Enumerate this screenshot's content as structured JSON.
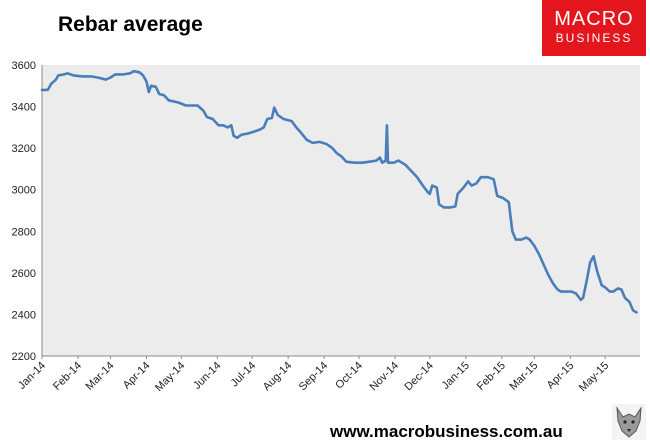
{
  "header": {
    "title": "Rebar average"
  },
  "logo": {
    "line1": "MACRO",
    "line2": "BUSINESS"
  },
  "footer": {
    "url": "www.macrobusiness.com.au"
  },
  "icons": {
    "watermark": "wolf-icon"
  },
  "colors": {
    "line": "#4a7ebb",
    "plot_background": "#ececec",
    "logo_background": "#e3161d"
  },
  "chart_data": {
    "type": "line",
    "title": "",
    "xlabel": "",
    "ylabel": "",
    "ylim": [
      2200,
      3600
    ],
    "yticks": [
      2200,
      2400,
      2600,
      2800,
      3000,
      3200,
      3400,
      3600
    ],
    "grid": false,
    "legend": "none",
    "x_tick_labels": [
      "Jan-14",
      "Feb-14",
      "Mar-14",
      "Apr-14",
      "May-14",
      "Jun-14",
      "Jul-14",
      "Aug-14",
      "Sep-14",
      "Oct-14",
      "Nov-14",
      "Dec-14",
      "Jan-15",
      "Feb-15",
      "Mar-15",
      "Apr-15",
      "May-15"
    ],
    "x_tick_dates": [
      "2014-01-01",
      "2014-02-01",
      "2014-03-01",
      "2014-04-01",
      "2014-05-01",
      "2014-06-01",
      "2014-07-01",
      "2014-08-01",
      "2014-09-01",
      "2014-10-01",
      "2014-11-01",
      "2014-12-01",
      "2015-01-01",
      "2015-02-01",
      "2015-03-01",
      "2015-04-01",
      "2015-05-01"
    ],
    "x_range": [
      "2014-01-01",
      "2015-05-31"
    ],
    "series": [
      {
        "points": [
          [
            "2014-01-01",
            3480
          ],
          [
            "2014-01-06",
            3480
          ],
          [
            "2014-01-09",
            3510
          ],
          [
            "2014-01-13",
            3530
          ],
          [
            "2014-01-15",
            3550
          ],
          [
            "2014-01-20",
            3555
          ],
          [
            "2014-01-23",
            3560
          ],
          [
            "2014-01-28",
            3550
          ],
          [
            "2014-02-05",
            3545
          ],
          [
            "2014-02-12",
            3545
          ],
          [
            "2014-02-18",
            3540
          ],
          [
            "2014-02-25",
            3530
          ],
          [
            "2014-03-01",
            3540
          ],
          [
            "2014-03-05",
            3555
          ],
          [
            "2014-03-12",
            3555
          ],
          [
            "2014-03-18",
            3560
          ],
          [
            "2014-03-21",
            3570
          ],
          [
            "2014-03-26",
            3565
          ],
          [
            "2014-03-29",
            3550
          ],
          [
            "2014-04-01",
            3520
          ],
          [
            "2014-04-03",
            3470
          ],
          [
            "2014-04-05",
            3500
          ],
          [
            "2014-04-09",
            3495
          ],
          [
            "2014-04-12",
            3460
          ],
          [
            "2014-04-16",
            3455
          ],
          [
            "2014-04-20",
            3430
          ],
          [
            "2014-04-28",
            3420
          ],
          [
            "2014-05-05",
            3405
          ],
          [
            "2014-05-09",
            3405
          ],
          [
            "2014-05-15",
            3405
          ],
          [
            "2014-05-20",
            3380
          ],
          [
            "2014-05-23",
            3350
          ],
          [
            "2014-05-28",
            3340
          ],
          [
            "2014-06-02",
            3310
          ],
          [
            "2014-06-06",
            3310
          ],
          [
            "2014-06-10",
            3300
          ],
          [
            "2014-06-13",
            3310
          ],
          [
            "2014-06-15",
            3260
          ],
          [
            "2014-06-18",
            3250
          ],
          [
            "2014-06-22",
            3265
          ],
          [
            "2014-06-27",
            3270
          ],
          [
            "2014-07-03",
            3280
          ],
          [
            "2014-07-08",
            3290
          ],
          [
            "2014-07-11",
            3300
          ],
          [
            "2014-07-14",
            3340
          ],
          [
            "2014-07-18",
            3345
          ],
          [
            "2014-07-20",
            3395
          ],
          [
            "2014-07-23",
            3360
          ],
          [
            "2014-07-28",
            3340
          ],
          [
            "2014-08-04",
            3330
          ],
          [
            "2014-08-08",
            3300
          ],
          [
            "2014-08-12",
            3275
          ],
          [
            "2014-08-17",
            3240
          ],
          [
            "2014-08-22",
            3225
          ],
          [
            "2014-08-28",
            3230
          ],
          [
            "2014-09-03",
            3220
          ],
          [
            "2014-09-08",
            3200
          ],
          [
            "2014-09-12",
            3175
          ],
          [
            "2014-09-16",
            3160
          ],
          [
            "2014-09-20",
            3135
          ],
          [
            "2014-09-27",
            3130
          ],
          [
            "2014-10-04",
            3130
          ],
          [
            "2014-10-10",
            3135
          ],
          [
            "2014-10-16",
            3140
          ],
          [
            "2014-10-19",
            3155
          ],
          [
            "2014-10-21",
            3130
          ],
          [
            "2014-10-24",
            3140
          ],
          [
            "2014-10-25",
            3310
          ],
          [
            "2014-10-26",
            3130
          ],
          [
            "2014-10-31",
            3130
          ],
          [
            "2014-11-04",
            3140
          ],
          [
            "2014-11-10",
            3120
          ],
          [
            "2014-11-15",
            3090
          ],
          [
            "2014-11-20",
            3060
          ],
          [
            "2014-11-25",
            3020
          ],
          [
            "2014-11-29",
            2990
          ],
          [
            "2014-12-01",
            2980
          ],
          [
            "2014-12-03",
            3020
          ],
          [
            "2014-12-07",
            3010
          ],
          [
            "2014-12-09",
            2930
          ],
          [
            "2014-12-13",
            2915
          ],
          [
            "2014-12-19",
            2915
          ],
          [
            "2014-12-23",
            2920
          ],
          [
            "2014-12-25",
            2980
          ],
          [
            "2014-12-30",
            3010
          ],
          [
            "2015-01-03",
            3040
          ],
          [
            "2015-01-06",
            3020
          ],
          [
            "2015-01-10",
            3030
          ],
          [
            "2015-01-14",
            3060
          ],
          [
            "2015-01-20",
            3060
          ],
          [
            "2015-01-25",
            3050
          ],
          [
            "2015-01-28",
            2970
          ],
          [
            "2015-02-02",
            2960
          ],
          [
            "2015-02-07",
            2940
          ],
          [
            "2015-02-10",
            2800
          ],
          [
            "2015-02-13",
            2760
          ],
          [
            "2015-02-18",
            2760
          ],
          [
            "2015-02-22",
            2770
          ],
          [
            "2015-02-25",
            2760
          ],
          [
            "2015-03-01",
            2730
          ],
          [
            "2015-03-05",
            2690
          ],
          [
            "2015-03-09",
            2640
          ],
          [
            "2015-03-13",
            2590
          ],
          [
            "2015-03-17",
            2550
          ],
          [
            "2015-03-21",
            2520
          ],
          [
            "2015-03-24",
            2510
          ],
          [
            "2015-03-28",
            2510
          ],
          [
            "2015-04-02",
            2510
          ],
          [
            "2015-04-06",
            2500
          ],
          [
            "2015-04-10",
            2470
          ],
          [
            "2015-04-12",
            2480
          ],
          [
            "2015-04-15",
            2560
          ],
          [
            "2015-04-18",
            2650
          ],
          [
            "2015-04-21",
            2680
          ],
          [
            "2015-04-24",
            2610
          ],
          [
            "2015-04-28",
            2540
          ],
          [
            "2015-05-01",
            2530
          ],
          [
            "2015-05-05",
            2510
          ],
          [
            "2015-05-08",
            2510
          ],
          [
            "2015-05-12",
            2525
          ],
          [
            "2015-05-15",
            2520
          ],
          [
            "2015-05-18",
            2480
          ],
          [
            "2015-05-22",
            2460
          ],
          [
            "2015-05-25",
            2420
          ],
          [
            "2015-05-28",
            2410
          ]
        ]
      }
    ]
  }
}
